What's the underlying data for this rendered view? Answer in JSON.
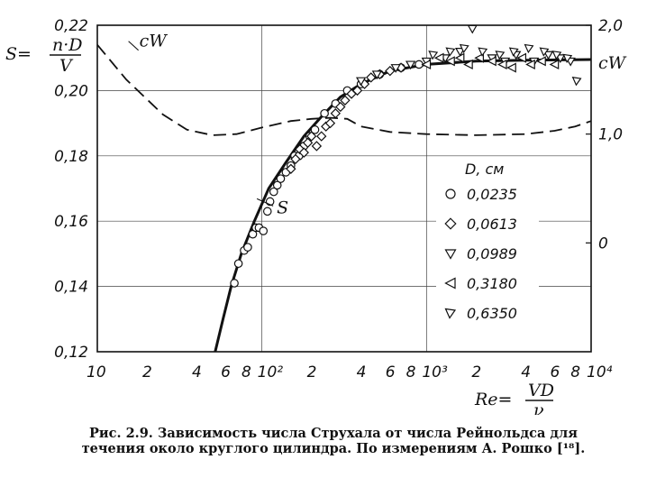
{
  "chart_data": {
    "type": "scatter",
    "title": "",
    "xlabel": "Re=VD/ν",
    "ylabel_left": "S=n·D/V",
    "ylabel_right": "c_W",
    "x_scale": "log",
    "xlim": [
      10,
      10000
    ],
    "ylim_left": [
      0.12,
      0.22
    ],
    "ylim_right": [
      -1.0,
      2.0
    ],
    "x_ticks": [
      {
        "value": 10,
        "label": "10"
      },
      {
        "value": 20,
        "label": "2"
      },
      {
        "value": 40,
        "label": "4"
      },
      {
        "value": 60,
        "label": "6"
      },
      {
        "value": 80,
        "label": "8"
      },
      {
        "value": 100,
        "label": "10²"
      },
      {
        "value": 200,
        "label": "2"
      },
      {
        "value": 400,
        "label": "4"
      },
      {
        "value": 600,
        "label": "6"
      },
      {
        "value": 800,
        "label": "8"
      },
      {
        "value": 1000,
        "label": "10³"
      },
      {
        "value": 2000,
        "label": "2"
      },
      {
        "value": 4000,
        "label": "4"
      },
      {
        "value": 6000,
        "label": "6"
      },
      {
        "value": 8000,
        "label": "8"
      },
      {
        "value": 10000,
        "label": "10⁴"
      }
    ],
    "y_ticks_left": [
      {
        "value": 0.12,
        "label": "0,12"
      },
      {
        "value": 0.14,
        "label": "0,14"
      },
      {
        "value": 0.16,
        "label": "0,16"
      },
      {
        "value": 0.18,
        "label": "0,18"
      },
      {
        "value": 0.2,
        "label": "0,20"
      },
      {
        "value": 0.22,
        "label": "0,22"
      }
    ],
    "y_ticks_right": [
      {
        "value": 0,
        "label": "0"
      },
      {
        "value": 1.0,
        "label": "1,0"
      },
      {
        "value": 2.0,
        "label": "2,0"
      }
    ],
    "grid": true,
    "legend": {
      "title": "D, см",
      "placement": "right",
      "entries": [
        {
          "marker": "circle",
          "label": "0,0235"
        },
        {
          "marker": "diamond",
          "label": "0,0613"
        },
        {
          "marker": "triangle-down",
          "label": "0,0989"
        },
        {
          "marker": "triangle-left",
          "label": "0,3180"
        },
        {
          "marker": "triangle-down-right",
          "label": "0,6350"
        }
      ]
    },
    "curves": [
      {
        "name": "S",
        "style": "solid",
        "axis": "left",
        "points": [
          [
            52,
            0.12
          ],
          [
            58,
            0.13
          ],
          [
            65,
            0.14
          ],
          [
            75,
            0.15
          ],
          [
            90,
            0.16
          ],
          [
            110,
            0.17
          ],
          [
            140,
            0.178
          ],
          [
            180,
            0.186
          ],
          [
            230,
            0.192
          ],
          [
            300,
            0.198
          ],
          [
            400,
            0.202
          ],
          [
            600,
            0.206
          ],
          [
            1000,
            0.208
          ],
          [
            2000,
            0.209
          ],
          [
            4000,
            0.2093
          ],
          [
            10000,
            0.2095
          ]
        ]
      },
      {
        "name": "c_W",
        "style": "dashed",
        "axis": "right",
        "points": [
          [
            10,
            1.82
          ],
          [
            15,
            1.5
          ],
          [
            25,
            1.18
          ],
          [
            35,
            1.04
          ],
          [
            50,
            0.99
          ],
          [
            70,
            1.0
          ],
          [
            100,
            1.06
          ],
          [
            150,
            1.12
          ],
          [
            200,
            1.14
          ],
          [
            260,
            1.15
          ],
          [
            330,
            1.14
          ],
          [
            400,
            1.07
          ],
          [
            600,
            1.02
          ],
          [
            1000,
            1.0
          ],
          [
            2000,
            0.99
          ],
          [
            4000,
            1.0
          ],
          [
            6000,
            1.03
          ],
          [
            8000,
            1.07
          ],
          [
            10000,
            1.12
          ]
        ]
      }
    ],
    "series": [
      {
        "marker": "circle",
        "points": [
          [
            68,
            0.141
          ],
          [
            72,
            0.147
          ],
          [
            78,
            0.151
          ],
          [
            82,
            0.152
          ],
          [
            88,
            0.156
          ],
          [
            92,
            0.158
          ],
          [
            96,
            0.158
          ],
          [
            102,
            0.157
          ],
          [
            108,
            0.163
          ],
          [
            112,
            0.166
          ],
          [
            118,
            0.169
          ],
          [
            124,
            0.171
          ],
          [
            130,
            0.173
          ],
          [
            140,
            0.175
          ],
          [
            150,
            0.177
          ],
          [
            158,
            0.18
          ],
          [
            168,
            0.18
          ],
          [
            180,
            0.183
          ],
          [
            195,
            0.186
          ],
          [
            210,
            0.188
          ],
          [
            240,
            0.193
          ],
          [
            280,
            0.196
          ],
          [
            330,
            0.2
          ],
          [
            400,
            0.202
          ],
          [
            520,
            0.205
          ],
          [
            700,
            0.207
          ],
          [
            900,
            0.208
          ]
        ]
      },
      {
        "marker": "diamond",
        "points": [
          [
            150,
            0.176
          ],
          [
            160,
            0.179
          ],
          [
            170,
            0.182
          ],
          [
            180,
            0.181
          ],
          [
            190,
            0.184
          ],
          [
            200,
            0.186
          ],
          [
            215,
            0.183
          ],
          [
            230,
            0.186
          ],
          [
            245,
            0.189
          ],
          [
            260,
            0.19
          ],
          [
            280,
            0.193
          ],
          [
            300,
            0.195
          ],
          [
            320,
            0.197
          ],
          [
            350,
            0.199
          ],
          [
            380,
            0.2
          ],
          [
            420,
            0.202
          ],
          [
            460,
            0.204
          ],
          [
            520,
            0.205
          ],
          [
            600,
            0.206
          ],
          [
            700,
            0.207
          ]
        ]
      },
      {
        "marker": "triangle-down",
        "points": [
          [
            400,
            0.203
          ],
          [
            500,
            0.205
          ],
          [
            650,
            0.207
          ],
          [
            800,
            0.208
          ],
          [
            1000,
            0.209
          ],
          [
            1300,
            0.21
          ],
          [
            1600,
            0.212
          ],
          [
            1900,
            0.219
          ],
          [
            2500,
            0.21
          ],
          [
            3000,
            0.209
          ],
          [
            3500,
            0.211
          ],
          [
            4500,
            0.209
          ],
          [
            5500,
            0.211
          ],
          [
            6500,
            0.21
          ],
          [
            7500,
            0.209
          ]
        ]
      },
      {
        "marker": "triangle-left",
        "points": [
          [
            1000,
            0.208
          ],
          [
            1200,
            0.21
          ],
          [
            1400,
            0.209
          ],
          [
            1600,
            0.21
          ],
          [
            1800,
            0.208
          ],
          [
            2100,
            0.21
          ],
          [
            2500,
            0.209
          ],
          [
            2900,
            0.208
          ],
          [
            3300,
            0.207
          ],
          [
            3800,
            0.21
          ],
          [
            4300,
            0.208
          ],
          [
            5000,
            0.209
          ],
          [
            6000,
            0.208
          ]
        ]
      },
      {
        "marker": "triangle-down-right",
        "points": [
          [
            1100,
            0.211
          ],
          [
            1400,
            0.212
          ],
          [
            1700,
            0.213
          ],
          [
            2200,
            0.212
          ],
          [
            2800,
            0.211
          ],
          [
            3400,
            0.212
          ],
          [
            4200,
            0.213
          ],
          [
            5200,
            0.212
          ],
          [
            6200,
            0.211
          ],
          [
            7200,
            0.21
          ],
          [
            8200,
            0.203
          ]
        ]
      }
    ],
    "annotations": [
      {
        "text": "S",
        "x": 120,
        "y": 0.163
      },
      {
        "text": "c_W",
        "x": 18,
        "y": 0.214
      }
    ]
  },
  "caption": {
    "line1": "Рис. 2.9. Зависимость числа Струхала от числа Рейнольдса для",
    "line2": "течения около круглого цилиндра. По измерениям А. Рошко [¹⁸]."
  }
}
